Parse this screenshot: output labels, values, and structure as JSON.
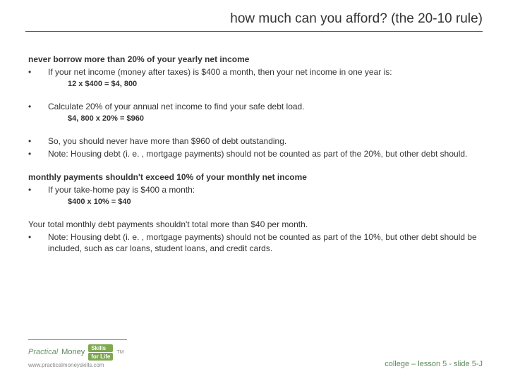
{
  "title": "how much can you afford? (the 20-10 rule)",
  "section1": {
    "heading": "never borrow more than 20% of your yearly net income",
    "b1": "If your net income (money after taxes) is $400 a month, then your net income in one year is:",
    "calc1": "12 x $400 = $4, 800",
    "b2": "Calculate 20% of your annual net income to find your safe debt load.",
    "calc2": "$4, 800 x 20% = $960",
    "b3": "So, you should never have more than $960 of debt outstanding.",
    "b4": "Note: Housing debt (i. e. , mortgage payments) should not be counted as part of the 20%, but other debt should."
  },
  "section2": {
    "heading": "monthly payments shouldn't exceed 10% of your monthly net income",
    "b1": "If your take-home pay is $400 a month:",
    "calc1": "$400 x 10% = $40",
    "p1": "Your total monthly debt payments shouldn't total more than $40 per month.",
    "b2": "Note: Housing debt (i. e. , mortgage payments) should not be counted as part of the 10%, but other debt should be included, such as car loans, student loans, and credit cards."
  },
  "bullet": "•",
  "logo": {
    "word1": "Practical",
    "word2": "Money",
    "pill1": "Skills",
    "pill2": "for Life",
    "tm": "TM",
    "url": "www.practicalmoneyskills.com"
  },
  "footer_right": "college – lesson 5 - slide 5-J",
  "colors": {
    "text": "#333333",
    "accent": "#5a8a5a",
    "pill": "#7fa850"
  }
}
